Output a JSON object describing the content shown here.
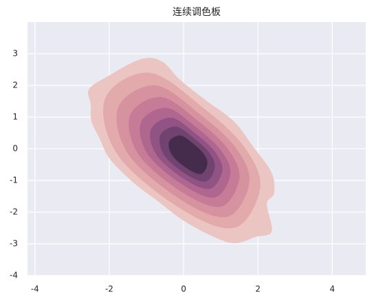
{
  "chart_data": {
    "type": "contour",
    "title": "连续调色板",
    "xlim": [
      -4.2,
      4.9
    ],
    "ylim": [
      -4,
      4
    ],
    "xticks": [
      -4,
      -2,
      0,
      2,
      4
    ],
    "yticks": [
      -4,
      -3,
      -2,
      -1,
      0,
      1,
      2,
      3
    ],
    "grid": true,
    "background": "#eaeaf2",
    "levels": [
      {
        "color": "#ebc5c1",
        "x": [
          -2.54,
          -1.98,
          -1.15,
          -0.59,
          -0.09,
          0.61,
          1.35,
          1.87,
          2.37,
          2.43,
          2.24,
          2.37,
          1.94,
          1.35,
          0.7,
          -0.04,
          -0.72,
          -1.33,
          -1.98,
          -2.26,
          -2.48,
          -2.5
        ],
        "y": [
          1.89,
          2.33,
          2.83,
          2.76,
          2.17,
          1.52,
          0.87,
          0.07,
          -0.76,
          -1.41,
          -1.74,
          -2.61,
          -2.78,
          -2.98,
          -2.72,
          -2.24,
          -1.63,
          -1.09,
          -0.33,
          0.33,
          0.87,
          1.41
        ]
      },
      {
        "color": "#e2aaab",
        "x": [
          -2.11,
          -0.92,
          0.53,
          1.63,
          2.06,
          1.38,
          -0.07,
          -1.77
        ],
        "y": [
          1.59,
          2.4,
          1.29,
          0.06,
          -1.22,
          -2.49,
          -1.9,
          -0.2
        ]
      },
      {
        "color": "#d6929f",
        "x": [
          -1.76,
          -0.75,
          0.47,
          1.41,
          1.77,
          1.19,
          -0.03,
          -1.47
        ],
        "y": [
          1.31,
          2.0,
          1.06,
          0.02,
          -1.06,
          -2.14,
          -1.64,
          -0.2
        ]
      },
      {
        "color": "#c67c97",
        "x": [
          -1.44,
          -0.6,
          0.42,
          1.2,
          1.5,
          1.02,
          0.0,
          -1.2
        ],
        "y": [
          1.06,
          1.63,
          0.85,
          -0.02,
          -0.92,
          -1.82,
          -1.4,
          -0.2
        ]
      },
      {
        "color": "#b0678f",
        "x": [
          -1.15,
          -0.46,
          0.37,
          1.01,
          1.26,
          0.86,
          0.03,
          -0.95
        ],
        "y": [
          0.83,
          1.29,
          0.65,
          -0.06,
          -0.79,
          -1.53,
          -1.18,
          -0.2
        ]
      },
      {
        "color": "#915383",
        "x": [
          -0.88,
          -0.33,
          0.33,
          0.84,
          1.04,
          0.72,
          0.06,
          -0.72
        ],
        "y": [
          0.61,
          0.98,
          0.47,
          -0.09,
          -0.68,
          -1.26,
          -0.99,
          -0.21
        ]
      },
      {
        "color": "#714370",
        "x": [
          -0.63,
          -0.21,
          0.3,
          0.69,
          0.84,
          0.6,
          0.09,
          -0.51
        ],
        "y": [
          0.42,
          0.7,
          0.31,
          -0.13,
          -0.58,
          -1.03,
          -0.82,
          -0.22
        ]
      },
      {
        "color": "#452c4d",
        "x": [
          -0.39,
          -0.09,
          0.27,
          0.54,
          0.64,
          0.48,
          0.12,
          -0.3
        ],
        "y": [
          0.22,
          0.42,
          0.15,
          -0.16,
          -0.47,
          -0.79,
          -0.64,
          -0.22
        ]
      }
    ]
  }
}
